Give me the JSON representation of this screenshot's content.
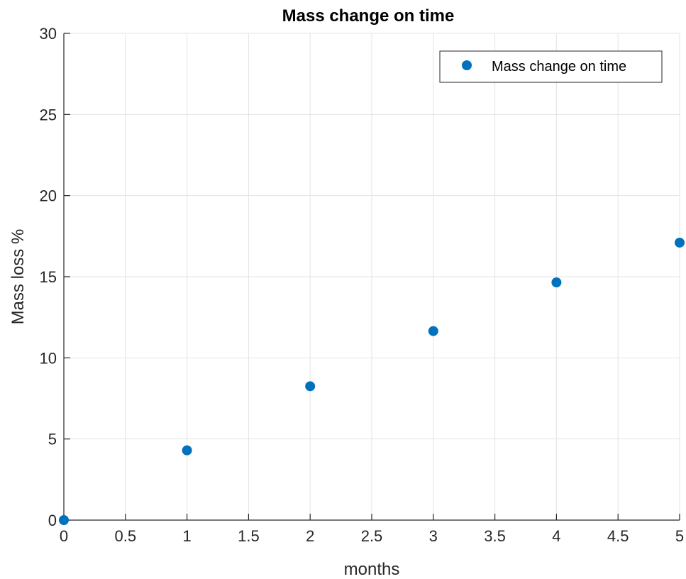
{
  "chart_data": {
    "type": "scatter",
    "title": "Mass change on time",
    "xlabel": "months",
    "ylabel": "Mass  loss %",
    "xlim": [
      0,
      5
    ],
    "ylim": [
      0,
      30
    ],
    "xticks": [
      0,
      0.5,
      1,
      1.5,
      2,
      2.5,
      3,
      3.5,
      4,
      4.5,
      5
    ],
    "xtick_labels": [
      "0",
      "0.5",
      "1",
      "1.5",
      "2",
      "2.5",
      "3",
      "3.5",
      "4",
      "4.5",
      "5"
    ],
    "yticks": [
      0,
      5,
      10,
      15,
      20,
      25,
      30
    ],
    "ytick_labels": [
      "0",
      "5",
      "10",
      "15",
      "20",
      "25",
      "30"
    ],
    "grid": true,
    "legend_position": "top-right",
    "series": [
      {
        "name": "Mass change on time",
        "color": "#0072BD",
        "marker": "circle",
        "x": [
          0,
          1,
          2,
          3,
          4,
          5
        ],
        "y": [
          0,
          4.3,
          8.25,
          11.65,
          14.65,
          17.1
        ]
      }
    ]
  }
}
